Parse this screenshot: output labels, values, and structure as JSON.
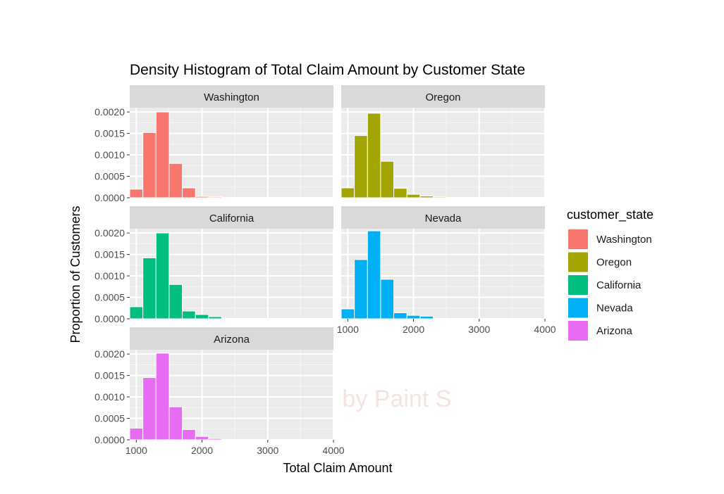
{
  "chart_data": {
    "type": "bar",
    "title": "Density Histogram of Total Claim Amount by Customer State",
    "xlabel": "Total Claim Amount",
    "ylabel": "Proportion of Customers",
    "xlim": [
      900,
      4000
    ],
    "ylim": [
      0,
      0.0021
    ],
    "x_ticks": [
      1000,
      2000,
      3000,
      4000
    ],
    "x_tick_labels": [
      "1000",
      "2000",
      "3000",
      "4000"
    ],
    "y_ticks": [
      0,
      0.0005,
      0.001,
      0.0015,
      0.002
    ],
    "y_tick_labels": [
      "0.0000",
      "0.0005",
      "0.0010",
      "0.0015",
      "0.0020"
    ],
    "bins": [
      [
        900,
        1100
      ],
      [
        1100,
        1300
      ],
      [
        1300,
        1500
      ],
      [
        1500,
        1700
      ],
      [
        1700,
        1900
      ],
      [
        1900,
        2100
      ],
      [
        2100,
        2300
      ],
      [
        2300,
        2500
      ],
      [
        2500,
        2700
      ],
      [
        2700,
        2900
      ]
    ],
    "series": [
      {
        "name": "Washington",
        "color": "#F8766D",
        "values": [
          0.0002,
          0.00152,
          0.002,
          0.0008,
          0.00023,
          3e-05,
          2e-05,
          1e-05,
          0,
          0
        ]
      },
      {
        "name": "Oregon",
        "color": "#A3A500",
        "values": [
          0.00023,
          0.00145,
          0.00197,
          0.00085,
          0.00022,
          8e-05,
          4e-05,
          2e-05,
          1e-05,
          0
        ]
      },
      {
        "name": "California",
        "color": "#00BF7D",
        "values": [
          0.00028,
          0.00142,
          0.002,
          0.0008,
          0.00018,
          0.0001,
          5e-05,
          1e-05,
          0,
          0
        ]
      },
      {
        "name": "Nevada",
        "color": "#00B0F6",
        "values": [
          0.00023,
          0.00138,
          0.00205,
          0.00092,
          0.00014,
          8e-05,
          6e-05,
          0,
          0,
          0
        ]
      },
      {
        "name": "Arizona",
        "color": "#E76BF3",
        "values": [
          0.00027,
          0.00145,
          0.00202,
          0.00077,
          0.00024,
          8e-05,
          3e-05,
          1e-05,
          0,
          0
        ]
      }
    ],
    "legend": {
      "title": "customer_state",
      "position": "right"
    },
    "grid": true
  },
  "watermark_text": "Created by Paint S"
}
